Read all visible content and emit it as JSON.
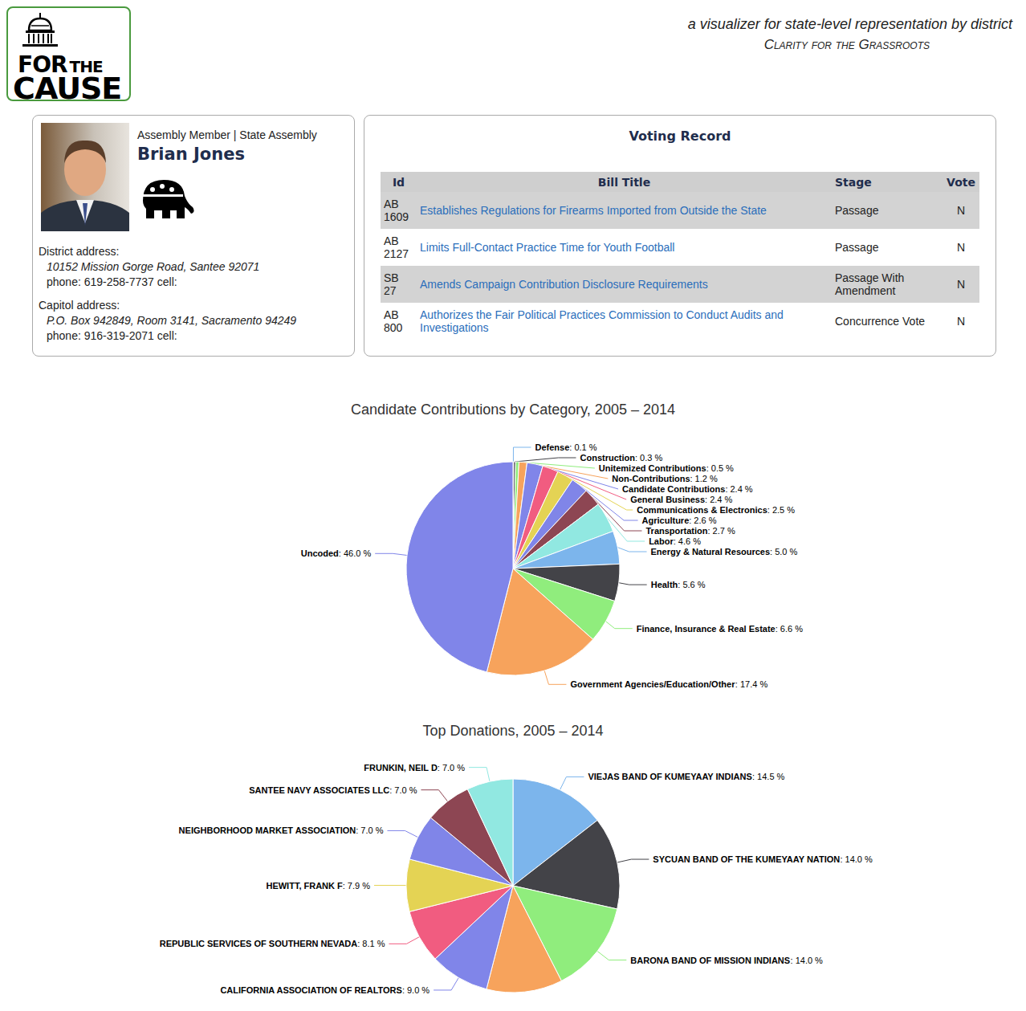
{
  "header": {
    "logo": [
      "FOR",
      "THE",
      "CAUSE"
    ],
    "tagline": "a visualizer for state-level representation by district",
    "subtitle": "Clarity for the Grassroots"
  },
  "profile": {
    "role": "Assembly Member | State Assembly",
    "name": "Brian Jones",
    "district": {
      "heading": "District address:",
      "address": "10152 Mission Gorge Road, Santee 92071",
      "phone": "phone: 619-258-7737 cell:"
    },
    "capitol": {
      "heading": "Capitol address:",
      "address": "P.O. Box 942849, Room 3141, Sacramento 94249",
      "phone": "phone: 916-319-2071 cell:"
    }
  },
  "voting_record": {
    "title": "Voting Record",
    "columns": [
      "Id",
      "Bill Title",
      "Stage",
      "Vote"
    ],
    "rows": [
      [
        "AB 1609",
        "Establishes Regulations for Firearms Imported from Outside the State",
        "Passage",
        "N"
      ],
      [
        "AB 2127",
        "Limits Full-Contact Practice Time for Youth Football",
        "Passage",
        "N"
      ],
      [
        "SB 27",
        "Amends Campaign Contribution Disclosure Requirements",
        "Passage With Amendment",
        "N"
      ],
      [
        "AB 800",
        "Authorizes the Fair Political Practices Commission to Conduct Audits and Investigations",
        "Concurrence Vote",
        "N"
      ]
    ]
  },
  "chart_data": [
    {
      "type": "pie",
      "title": "Candidate Contributions by Category, 2005 – 2014",
      "categories": [
        "Defense",
        "Construction",
        "Unitemized Contributions",
        "Non-Contributions",
        "Candidate Contributions",
        "General Business",
        "Communications & Electronics",
        "Agriculture",
        "Transportation",
        "Labor",
        "Energy & Natural Resources",
        "Health",
        "Finance, Insurance & Real Estate",
        "Government Agencies/Education/Other",
        "Uncoded"
      ],
      "values": [
        0.1,
        0.3,
        0.5,
        1.2,
        2.4,
        2.4,
        2.5,
        2.6,
        2.7,
        4.6,
        5.0,
        5.6,
        6.6,
        17.4,
        46.0
      ],
      "value_labels": [
        "0.1 %",
        "0.3 %",
        "0.5 %",
        "1.2 %",
        "2.4 %",
        "2.4 %",
        "2.5 %",
        "2.6 %",
        "2.7 %",
        "4.6 %",
        "5.0 %",
        "5.6 %",
        "6.6 %",
        "17.4 %",
        "46.0 %"
      ],
      "colors": [
        "#7cb5ec",
        "#434348",
        "#90ed7d",
        "#f7a35c",
        "#8085e9",
        "#f15c80",
        "#e4d354",
        "#8085e8",
        "#8d4653",
        "#91e8e1",
        "#7cb5ec",
        "#434348",
        "#90ed7d",
        "#f7a35c",
        "#8085e9"
      ],
      "data_labels": true
    },
    {
      "type": "pie",
      "title": "Top Donations, 2005 – 2014",
      "categories": [
        "VIEJAS BAND OF KUMEYAAY INDIANS",
        "SYCUAN BAND OF THE KUMEYAAY NATION",
        "BARONA BAND OF MISSION INDIANS",
        null,
        "CALIFORNIA ASSOCIATION OF REALTORS",
        "REPUBLIC SERVICES OF SOUTHERN NEVADA",
        "HEWITT, FRANK F",
        "NEIGHBORHOOD MARKET ASSOCIATION",
        "SANTEE NAVY ASSOCIATES LLC",
        "FRUNKIN, NEIL D"
      ],
      "values": [
        14.5,
        14.0,
        14.0,
        11.5,
        9.0,
        8.1,
        7.9,
        7.0,
        7.0,
        7.0
      ],
      "value_labels": [
        "14.5 %",
        "14.0 %",
        "14.0 %",
        null,
        "9.0 %",
        "8.1 %",
        "7.9 %",
        "7.0 %",
        "7.0 %",
        "7.0 %"
      ],
      "colors": [
        "#7cb5ec",
        "#434348",
        "#90ed7d",
        "#f7a35c",
        "#8085e9",
        "#f15c80",
        "#e4d354",
        "#8085e8",
        "#8d4653",
        "#91e8e1"
      ],
      "data_labels": true
    }
  ]
}
